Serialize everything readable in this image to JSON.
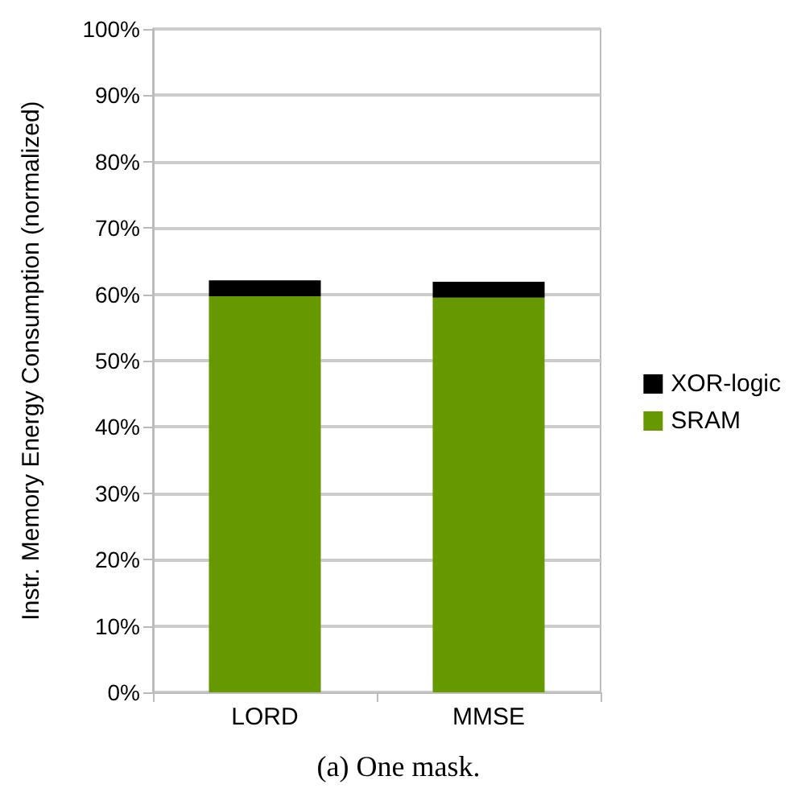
{
  "chart_data": {
    "type": "bar",
    "stacked": true,
    "categories": [
      "LORD",
      "MMSE"
    ],
    "series": [
      {
        "name": "SRAM",
        "color": "#669900",
        "values": [
          59.7,
          59.5
        ]
      },
      {
        "name": "XOR-logic",
        "color": "#000000",
        "values": [
          2.4,
          2.4
        ]
      }
    ],
    "ylabel": "Instr. Memory Energy Consumption (normalized)",
    "ylim": [
      0,
      100
    ],
    "yticks": [
      {
        "value": 0,
        "label": "0%"
      },
      {
        "value": 10,
        "label": "10%"
      },
      {
        "value": 20,
        "label": "20%"
      },
      {
        "value": 30,
        "label": "30%"
      },
      {
        "value": 40,
        "label": "40%"
      },
      {
        "value": 50,
        "label": "50%"
      },
      {
        "value": 60,
        "label": "60%"
      },
      {
        "value": 70,
        "label": "70%"
      },
      {
        "value": 80,
        "label": "80%"
      },
      {
        "value": 90,
        "label": "90%"
      },
      {
        "value": 100,
        "label": "100%"
      }
    ],
    "grid": "y",
    "legend": "right",
    "annotations": [
      "(a) One mask."
    ]
  }
}
